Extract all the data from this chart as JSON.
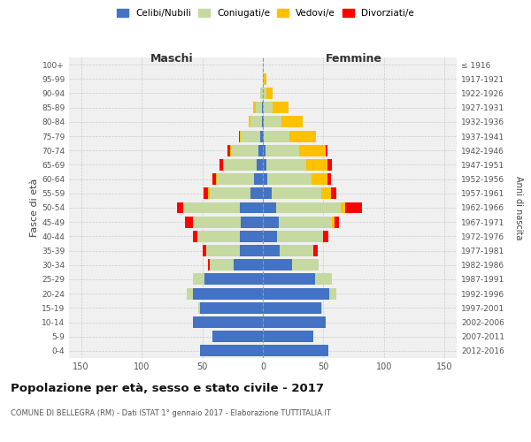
{
  "age_groups": [
    "0-4",
    "5-9",
    "10-14",
    "15-19",
    "20-24",
    "25-29",
    "30-34",
    "35-39",
    "40-44",
    "45-49",
    "50-54",
    "55-59",
    "60-64",
    "65-69",
    "70-74",
    "75-79",
    "80-84",
    "85-89",
    "90-94",
    "95-99",
    "100+"
  ],
  "birth_years": [
    "2012-2016",
    "2007-2011",
    "2002-2006",
    "1997-2001",
    "1992-1996",
    "1987-1991",
    "1982-1986",
    "1977-1981",
    "1972-1976",
    "1967-1971",
    "1962-1966",
    "1957-1961",
    "1952-1956",
    "1947-1951",
    "1942-1946",
    "1937-1941",
    "1932-1936",
    "1927-1931",
    "1922-1926",
    "1917-1921",
    "≤ 1916"
  ],
  "maschi": {
    "celibi": [
      52,
      42,
      58,
      52,
      58,
      48,
      24,
      19,
      19,
      18,
      19,
      10,
      7,
      5,
      4,
      2,
      1,
      1,
      0,
      0,
      0
    ],
    "coniugati": [
      0,
      0,
      0,
      1,
      5,
      10,
      20,
      28,
      35,
      40,
      47,
      34,
      31,
      27,
      22,
      16,
      9,
      5,
      2,
      0,
      0
    ],
    "vedovi": [
      0,
      0,
      0,
      0,
      0,
      0,
      0,
      0,
      0,
      0,
      0,
      1,
      1,
      1,
      1,
      1,
      2,
      2,
      0,
      0,
      0
    ],
    "divorziati": [
      0,
      0,
      0,
      0,
      0,
      0,
      1,
      3,
      4,
      6,
      5,
      4,
      3,
      3,
      2,
      1,
      0,
      0,
      0,
      0,
      0
    ]
  },
  "femmine": {
    "celibi": [
      54,
      42,
      52,
      48,
      55,
      43,
      24,
      14,
      12,
      13,
      11,
      7,
      4,
      3,
      2,
      1,
      1,
      0,
      0,
      0,
      0
    ],
    "coniugati": [
      0,
      0,
      0,
      1,
      6,
      14,
      22,
      28,
      38,
      44,
      53,
      41,
      36,
      33,
      28,
      21,
      14,
      8,
      3,
      1,
      0
    ],
    "vedovi": [
      0,
      0,
      0,
      0,
      0,
      0,
      0,
      0,
      0,
      2,
      4,
      8,
      13,
      17,
      22,
      22,
      18,
      13,
      5,
      2,
      0
    ],
    "divorziati": [
      0,
      0,
      0,
      0,
      0,
      0,
      0,
      3,
      4,
      4,
      14,
      5,
      3,
      4,
      1,
      0,
      0,
      0,
      0,
      0,
      0
    ]
  },
  "colors": {
    "celibi": "#4472c4",
    "coniugati": "#c5d9a0",
    "vedovi": "#ffc000",
    "divorziati": "#ff0000"
  },
  "legend_labels": [
    "Celibi/Nubili",
    "Coniugati/e",
    "Vedovi/e",
    "Divorziati/e"
  ],
  "xlim": 160,
  "title": "Popolazione per età, sesso e stato civile - 2017",
  "subtitle": "COMUNE DI BELLEGRA (RM) - Dati ISTAT 1° gennaio 2017 - Elaborazione TUTTITALIA.IT",
  "ylabel_left": "Fasce di età",
  "ylabel_right": "Anni di nascita",
  "xlabel_maschi": "Maschi",
  "xlabel_femmine": "Femmine",
  "background_color": "#ffffff",
  "plot_bg_color": "#f0f0f0",
  "grid_color": "#cccccc"
}
